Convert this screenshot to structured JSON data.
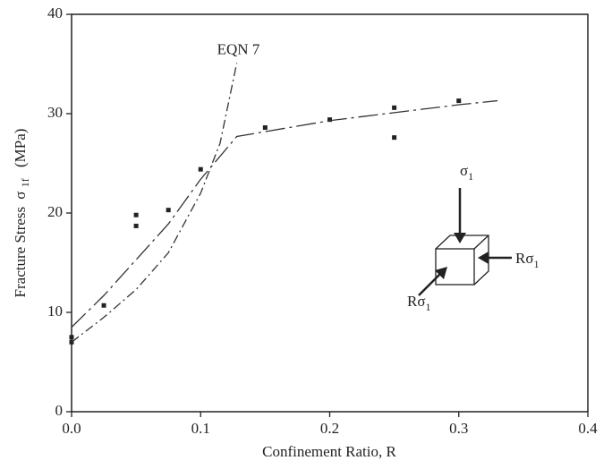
{
  "chart_data": {
    "type": "scatter",
    "xlabel": "Confinement Ratio,  R",
    "ylabel": {
      "text": "Fracture Stress",
      "symbol": "σ",
      "subscript": "1f",
      "unit": "(MPa)"
    },
    "xlim": [
      0,
      0.4
    ],
    "xticks": [
      {
        "value": 0,
        "label": "0.0"
      },
      0.1,
      0.2,
      0.3,
      0.4
    ],
    "ylim": [
      0,
      40
    ],
    "yticks": [
      0,
      10,
      20,
      30,
      40
    ],
    "series": [
      {
        "kind": "points",
        "color": "#222222",
        "x": [
          0,
          0,
          0.025,
          0.05,
          0.05,
          0.075,
          0.1,
          0.15,
          0.2,
          0.25,
          0.25,
          0.3
        ],
        "values": [
          7.5,
          7.0,
          10.7,
          19.8,
          18.7,
          20.3,
          24.4,
          28.6,
          29.4,
          30.6,
          27.6,
          31.3
        ]
      },
      {
        "kind": "fit",
        "color": "#333333",
        "x": [
          0,
          0.025,
          0.05,
          0.075,
          0.1,
          0.128,
          0.2,
          0.25,
          0.3,
          0.33
        ],
        "values": [
          8.5,
          11.7,
          15.3,
          18.9,
          23.4,
          27.7,
          29.3,
          30.1,
          30.9,
          31.3
        ]
      },
      {
        "kind": "eqn",
        "name": "EQN 7",
        "color": "#333333",
        "x": [
          0,
          0.025,
          0.05,
          0.075,
          0.1,
          0.115,
          0.128
        ],
        "values": [
          7.0,
          9.5,
          12.3,
          16.0,
          22.0,
          27.0,
          35.1
        ]
      }
    ],
    "inset": {
      "top": {
        "text": "σ",
        "sub": "1"
      },
      "right": {
        "text": "Rσ",
        "sub": "1"
      },
      "left": {
        "text": "Rσ",
        "sub": "1"
      }
    }
  }
}
